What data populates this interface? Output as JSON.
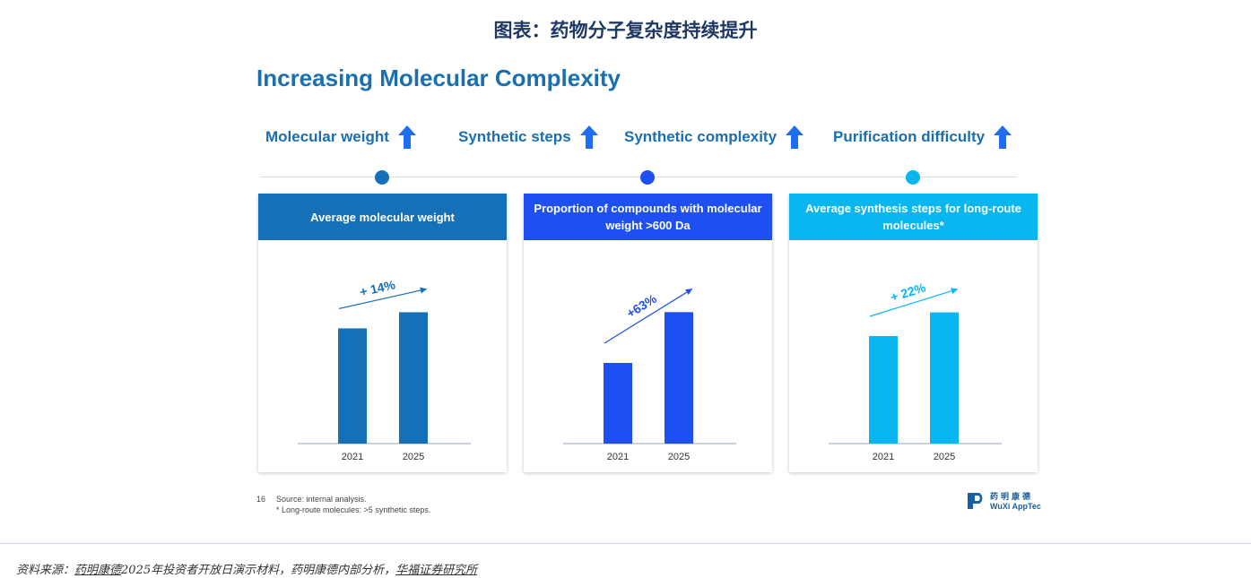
{
  "page_title": "图表：药物分子复杂度持续提升",
  "slide_heading": "Increasing Molecular Complexity",
  "metrics": [
    {
      "label": "Molecular weight",
      "icon": "up-arrow-icon"
    },
    {
      "label": "Synthetic steps",
      "icon": "up-arrow-icon"
    },
    {
      "label": "Synthetic complexity",
      "icon": "up-arrow-icon"
    },
    {
      "label": "Purification difficulty",
      "icon": "up-arrow-icon"
    }
  ],
  "colors": {
    "dark_blue": "#1670b8",
    "royal_blue": "#1e4ff0",
    "sky_blue": "#09b6f0",
    "heading_blue": "#1a6fb0",
    "arrow_blue": "#1e6ff0"
  },
  "chart_data": [
    {
      "type": "bar",
      "title": "Average molecular weight",
      "categories": [
        "2021",
        "2025"
      ],
      "values": [
        100,
        114
      ],
      "annotation": "+ 14%",
      "ylim": [
        0,
        140
      ],
      "grid": false
    },
    {
      "type": "bar",
      "title": "Proportion of compounds with molecular weight >600 Da",
      "categories": [
        "2021",
        "2025"
      ],
      "values": [
        100,
        163
      ],
      "annotation": "+63%",
      "ylim": [
        0,
        200
      ],
      "grid": false
    },
    {
      "type": "bar",
      "title": "Average synthesis steps for long-route molecules*",
      "categories": [
        "2021",
        "2025"
      ],
      "values": [
        100,
        122
      ],
      "annotation": "+ 22%",
      "ylim": [
        0,
        150
      ],
      "grid": false
    }
  ],
  "footnote": {
    "page_number": "16",
    "source": "Source: internal analysis.",
    "note": "* Long-route molecules: >5 synthetic steps."
  },
  "logo": {
    "chinese": "药明康德",
    "english": "WuXi AppTec"
  },
  "source_line": {
    "prefix": "资料来源：",
    "part1": "药明康德",
    "part2": "2025年投资者开放日演示材料，药明康德内部分析，",
    "part3": "华福证券研究所"
  }
}
